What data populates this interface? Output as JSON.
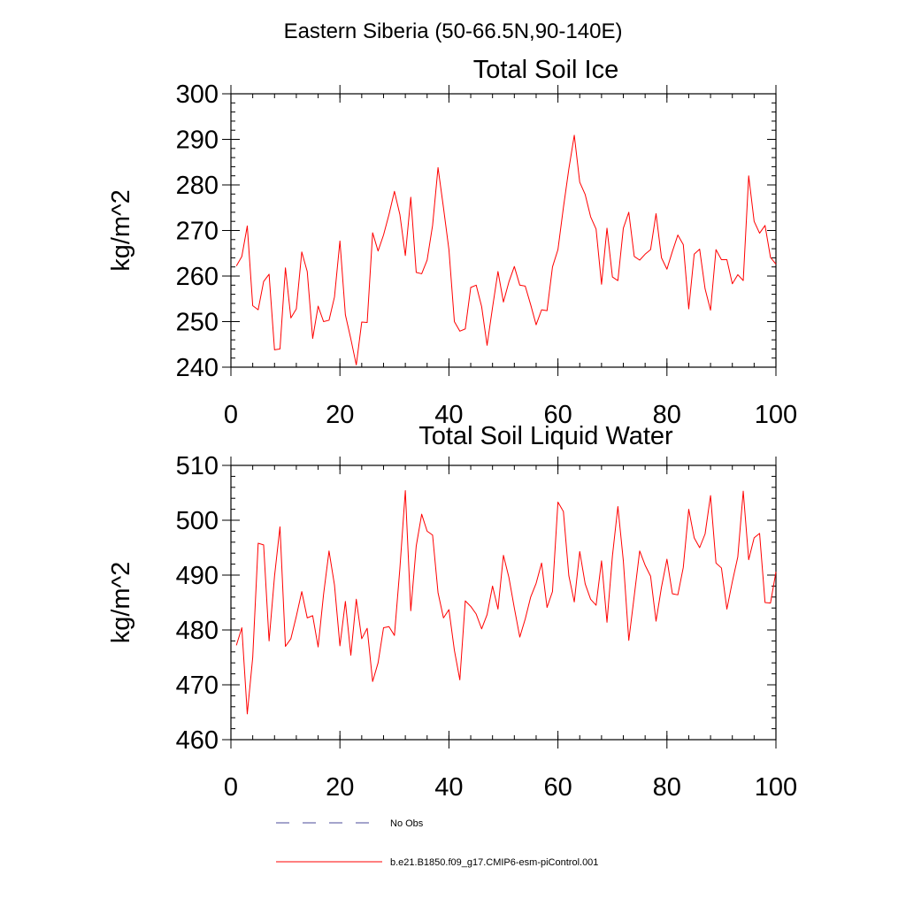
{
  "page": {
    "supertitle": "Eastern Siberia (50-66.5N,90-140E)"
  },
  "colors": {
    "model_line": "#ff0000",
    "obs_line": "#4a4a9a",
    "axes": "#000000"
  },
  "chart_data": [
    {
      "type": "line",
      "title": "Total Soil Ice",
      "xlabel": "",
      "ylabel": "kg/m^2",
      "xlim": [
        0,
        100
      ],
      "ylim": [
        240,
        300
      ],
      "xticks": [
        0,
        20,
        40,
        60,
        80,
        100
      ],
      "yticks": [
        240,
        250,
        260,
        270,
        280,
        290,
        300
      ],
      "grid": false,
      "series": [
        {
          "name": "b.e21.B1850.f09_g17.CMIP6-esm-piControl.001",
          "x": [
            1,
            2,
            3,
            4,
            5,
            6,
            7,
            8,
            9,
            10,
            11,
            12,
            13,
            14,
            15,
            16,
            17,
            18,
            19,
            20,
            21,
            22,
            23,
            24,
            25,
            26,
            27,
            28,
            29,
            30,
            31,
            32,
            33,
            34,
            35,
            36,
            37,
            38,
            39,
            40,
            41,
            42,
            43,
            44,
            45,
            46,
            47,
            48,
            49,
            50,
            51,
            52,
            53,
            54,
            55,
            56,
            57,
            58,
            59,
            60,
            61,
            62,
            63,
            64,
            65,
            66,
            67,
            68,
            69,
            70,
            71,
            72,
            73,
            74,
            75,
            76,
            77,
            78,
            79,
            80,
            81,
            82,
            83,
            84,
            85,
            86,
            87,
            88,
            89,
            90,
            91,
            92,
            93,
            94,
            95,
            96,
            97,
            98,
            99,
            100
          ],
          "values": [
            262.2,
            264.3,
            271.0,
            253.5,
            252.6,
            258.8,
            260.4,
            243.8,
            244.0,
            261.8,
            250.8,
            252.8,
            265.3,
            261.0,
            246.3,
            253.4,
            250.0,
            250.3,
            255.4,
            267.7,
            251.5,
            246.2,
            240.5,
            249.9,
            249.8,
            269.5,
            265.5,
            269.0,
            273.5,
            278.6,
            273.5,
            264.5,
            277.3,
            260.8,
            260.5,
            263.5,
            271.1,
            283.8,
            275.0,
            265.8,
            250.0,
            247.9,
            248.4,
            257.5,
            258.0,
            253.3,
            244.8,
            253.1,
            261.0,
            254.3,
            258.7,
            262.1,
            258.0,
            257.8,
            253.7,
            249.3,
            252.6,
            252.4,
            262.0,
            265.8,
            275.0,
            283.5,
            290.9,
            280.6,
            277.9,
            273.0,
            270.3,
            258.2,
            270.5,
            259.8,
            259.0,
            270.5,
            274.0,
            264.3,
            263.5,
            264.8,
            265.8,
            273.7,
            264.0,
            261.5,
            265.4,
            269.0,
            266.9,
            252.8,
            264.8,
            265.9,
            257.2,
            252.5,
            265.8,
            263.6,
            263.6,
            258.3,
            260.3,
            259.0,
            282.0,
            272.0,
            269.4,
            271.1,
            264.1,
            262.6
          ]
        }
      ]
    },
    {
      "type": "line",
      "title": "Total Soil Liquid Water",
      "xlabel": "",
      "ylabel": "kg/m^2",
      "xlim": [
        0,
        100
      ],
      "ylim": [
        460,
        510
      ],
      "xticks": [
        0,
        20,
        40,
        60,
        80,
        100
      ],
      "yticks": [
        460,
        470,
        480,
        490,
        500,
        510
      ],
      "grid": false,
      "series": [
        {
          "name": "b.e21.B1850.f09_g17.CMIP6-esm-piControl.001",
          "x": [
            1,
            2,
            3,
            4,
            5,
            6,
            7,
            8,
            9,
            10,
            11,
            12,
            13,
            14,
            15,
            16,
            17,
            18,
            19,
            20,
            21,
            22,
            23,
            24,
            25,
            26,
            27,
            28,
            29,
            30,
            31,
            32,
            33,
            34,
            35,
            36,
            37,
            38,
            39,
            40,
            41,
            42,
            43,
            44,
            45,
            46,
            47,
            48,
            49,
            50,
            51,
            52,
            53,
            54,
            55,
            56,
            57,
            58,
            59,
            60,
            61,
            62,
            63,
            64,
            65,
            66,
            67,
            68,
            69,
            70,
            71,
            72,
            73,
            74,
            75,
            76,
            77,
            78,
            79,
            80,
            81,
            82,
            83,
            84,
            85,
            86,
            87,
            88,
            89,
            90,
            91,
            92,
            93,
            94,
            95,
            96,
            97,
            98,
            99,
            100
          ],
          "values": [
            477.2,
            480.4,
            464.7,
            475.0,
            495.8,
            495.5,
            478.0,
            489.8,
            498.8,
            477.0,
            478.4,
            482.5,
            487.0,
            482.2,
            482.6,
            476.9,
            486.5,
            494.4,
            488.2,
            477.1,
            485.2,
            475.4,
            485.6,
            478.4,
            480.3,
            470.6,
            474.0,
            480.4,
            480.6,
            479.0,
            491.2,
            505.4,
            483.5,
            495.3,
            501.1,
            498.0,
            497.3,
            486.8,
            482.2,
            483.7,
            476.3,
            470.9,
            485.3,
            484.3,
            482.9,
            480.2,
            482.8,
            488.0,
            483.8,
            493.6,
            489.6,
            484.0,
            478.7,
            482.0,
            486.0,
            488.5,
            492.2,
            484.1,
            487.0,
            503.3,
            501.6,
            489.9,
            485.1,
            494.3,
            488.4,
            485.6,
            484.5,
            492.6,
            481.4,
            493.5,
            502.5,
            492.6,
            478.1,
            486.2,
            494.4,
            491.8,
            489.8,
            481.6,
            487.8,
            492.9,
            486.6,
            486.4,
            491.4,
            502.0,
            496.8,
            495.0,
            497.5,
            504.5,
            492.2,
            491.3,
            483.8,
            488.8,
            493.3,
            505.3,
            492.8,
            496.8,
            497.6,
            485.0,
            484.9,
            490.6
          ]
        }
      ]
    }
  ],
  "legend": {
    "items": [
      {
        "label": "No Obs",
        "style": "dashed",
        "color": "#4a4a9a"
      },
      {
        "label": "b.e21.B1850.f09_g17.CMIP6-esm-piControl.001",
        "style": "solid",
        "color": "#ff0000"
      }
    ]
  }
}
